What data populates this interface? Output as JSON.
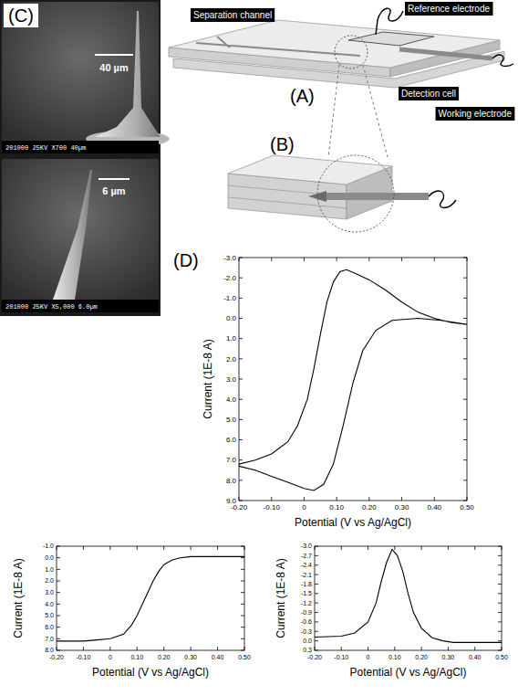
{
  "figure": {
    "panel_labels": [
      "(C)",
      "(A)",
      "(B)",
      "(D)"
    ],
    "sem_images": [
      {
        "scale_label": "40 µm",
        "footer": "201000 25KV X700 40µm"
      },
      {
        "scale_label": "6 µm",
        "footer": "201000 25KV X5,000 6.0µm"
      }
    ],
    "schematic_labels": [
      "Separation channel",
      "Reference electrode",
      "Detection cell",
      "Working electrode"
    ]
  },
  "chart_data": [
    {
      "type": "line",
      "color": "#000000",
      "grid": false,
      "xlabel": "Potential (V vs Ag/AgCl)",
      "ylabel": "Current (1E-8 A)",
      "xlim": [
        -0.2,
        0.5
      ],
      "xticks": [
        {
          "value": -0.2,
          "label": "-0.20"
        },
        {
          "value": -0.1,
          "label": "-0.10"
        },
        0,
        {
          "value": 0.1,
          "label": "0.10"
        },
        {
          "value": 0.2,
          "label": "0.20"
        },
        {
          "value": 0.3,
          "label": "0.30"
        },
        {
          "value": 0.4,
          "label": "0.40"
        },
        {
          "value": 0.5,
          "label": "0.50"
        }
      ],
      "ylim": [
        9.0,
        -3.0
      ],
      "yticks": [
        {
          "value": -3.0,
          "label": "-3.0"
        },
        {
          "value": -2.0,
          "label": "-2.0"
        },
        {
          "value": -1.0,
          "label": "-1.0"
        },
        {
          "value": 0.0,
          "label": "0.0"
        },
        {
          "value": 1.0,
          "label": "1.0"
        },
        {
          "value": 2.0,
          "label": "2.0"
        },
        {
          "value": 3.0,
          "label": "3.0"
        },
        {
          "value": 4.0,
          "label": "4.0"
        },
        {
          "value": 5.0,
          "label": "5.0"
        },
        {
          "value": 6.0,
          "label": "6.0"
        },
        {
          "value": 7.0,
          "label": "7.0"
        },
        {
          "value": 8.0,
          "label": "8.0"
        },
        {
          "value": 9.0,
          "label": "9.0"
        }
      ],
      "x": [
        0.5,
        0.45,
        0.4,
        0.35,
        0.3,
        0.25,
        0.2,
        0.16,
        0.13,
        0.11,
        0.09,
        0.07,
        0.05,
        0.03,
        0.01,
        -0.02,
        -0.05,
        -0.1,
        -0.15,
        -0.2,
        -0.2,
        -0.15,
        -0.1,
        -0.05,
        0.0,
        0.03,
        0.06,
        0.09,
        0.12,
        0.15,
        0.18,
        0.22,
        0.27,
        0.35,
        0.42,
        0.5
      ],
      "values": [
        0.3,
        0.2,
        0.0,
        -0.3,
        -0.8,
        -1.4,
        -1.9,
        -2.2,
        -2.4,
        -2.3,
        -1.8,
        -0.8,
        0.8,
        2.5,
        4.0,
        5.3,
        6.1,
        6.7,
        7.0,
        7.2,
        7.3,
        7.5,
        7.8,
        8.1,
        8.4,
        8.5,
        8.2,
        7.2,
        5.3,
        3.2,
        1.6,
        0.6,
        0.1,
        0.0,
        0.1,
        0.3
      ]
    },
    {
      "type": "line",
      "color": "#000000",
      "grid": false,
      "xlabel": "Potential (V vs Ag/AgCl)",
      "ylabel": "Current (1E-8 A)",
      "xlim": [
        -0.2,
        0.5
      ],
      "xticks": [
        {
          "value": -0.2,
          "label": "-0.20"
        },
        {
          "value": -0.1,
          "label": "-0.10"
        },
        0,
        {
          "value": 0.1,
          "label": "0.10"
        },
        {
          "value": 0.2,
          "label": "0.20"
        },
        {
          "value": 0.3,
          "label": "0.30"
        },
        {
          "value": 0.4,
          "label": "0.40"
        },
        {
          "value": 0.5,
          "label": "0.50"
        }
      ],
      "ylim": [
        8.0,
        -1.0
      ],
      "yticks": [
        {
          "value": -1.0,
          "label": "-1.0"
        },
        {
          "value": 0.0,
          "label": "0.0"
        },
        {
          "value": 1.0,
          "label": "1.0"
        },
        {
          "value": 2.0,
          "label": "2.0"
        },
        {
          "value": 3.0,
          "label": "3.0"
        },
        {
          "value": 4.0,
          "label": "4.0"
        },
        {
          "value": 5.0,
          "label": "5.0"
        },
        {
          "value": 6.0,
          "label": "6.0"
        },
        {
          "value": 7.0,
          "label": "7.0"
        },
        {
          "value": 8.0,
          "label": "8.0"
        }
      ],
      "x": [
        -0.2,
        -0.15,
        -0.1,
        -0.05,
        0.0,
        0.05,
        0.08,
        0.1,
        0.12,
        0.14,
        0.16,
        0.18,
        0.2,
        0.23,
        0.26,
        0.3,
        0.4,
        0.5
      ],
      "values": [
        7.2,
        7.2,
        7.2,
        7.1,
        7.0,
        6.6,
        5.8,
        5.0,
        4.0,
        3.0,
        2.0,
        1.2,
        0.6,
        0.2,
        0.0,
        -0.1,
        -0.1,
        -0.1
      ]
    },
    {
      "type": "line",
      "color": "#000000",
      "grid": false,
      "xlabel": "Potential (V vs Ag/AgCl)",
      "ylabel": "Current (1E-8 A)",
      "xlim": [
        -0.2,
        0.5
      ],
      "xticks": [
        {
          "value": -0.2,
          "label": "-0.20"
        },
        {
          "value": -0.1,
          "label": "-0.10"
        },
        0,
        {
          "value": 0.1,
          "label": "0.10"
        },
        {
          "value": 0.2,
          "label": "0.20"
        },
        {
          "value": 0.3,
          "label": "0.30"
        },
        {
          "value": 0.4,
          "label": "0.40"
        },
        {
          "value": 0.5,
          "label": "0.50"
        }
      ],
      "ylim": [
        0.3,
        -3.0
      ],
      "yticks": [
        {
          "value": -3.0,
          "label": "-3.0"
        },
        {
          "value": -2.7,
          "label": "-2.7"
        },
        {
          "value": -2.4,
          "label": "-2.4"
        },
        {
          "value": -2.1,
          "label": "-2.1"
        },
        {
          "value": -1.8,
          "label": "-1.8"
        },
        {
          "value": -1.5,
          "label": "-1.5"
        },
        {
          "value": -1.2,
          "label": "-1.2"
        },
        {
          "value": -0.9,
          "label": "-0.9"
        },
        {
          "value": -0.6,
          "label": "-0.6"
        },
        {
          "value": -0.3,
          "label": "-0.3"
        },
        {
          "value": 0.0,
          "label": "0.0"
        },
        {
          "value": 0.3,
          "label": "0.3"
        }
      ],
      "x": [
        -0.2,
        -0.1,
        -0.05,
        0.0,
        0.03,
        0.05,
        0.07,
        0.09,
        0.11,
        0.13,
        0.15,
        0.17,
        0.2,
        0.24,
        0.28,
        0.32,
        0.4,
        0.5
      ],
      "values": [
        -0.12,
        -0.15,
        -0.25,
        -0.6,
        -1.2,
        -1.9,
        -2.5,
        -2.9,
        -2.7,
        -2.2,
        -1.5,
        -0.9,
        -0.4,
        -0.1,
        0.0,
        0.05,
        0.05,
        0.05
      ]
    }
  ]
}
